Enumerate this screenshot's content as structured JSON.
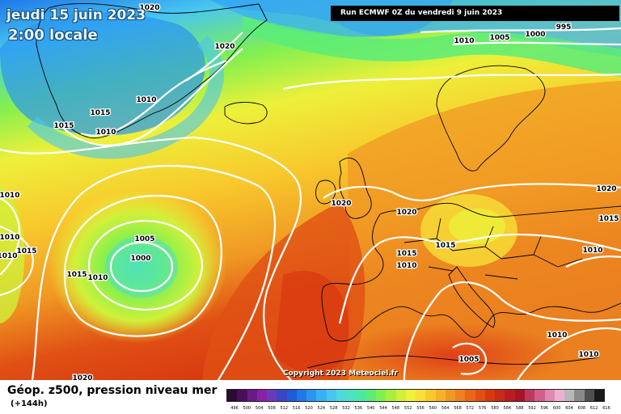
{
  "header": {
    "date": "jeudi 15 juin 2023",
    "local_time": "2:00 locale",
    "run": "Run ECMWF 0Z du vendredi 9 juin 2023"
  },
  "map": {
    "copyright": "Copyright 2023 Meteociel.fr",
    "isobar_labels": [
      {
        "id": "top-1020",
        "text": "1020"
      },
      {
        "id": "top-995",
        "text": "995"
      },
      {
        "id": "top-1000",
        "text": "1000"
      },
      {
        "id": "top-1005",
        "text": "1005"
      },
      {
        "id": "top-1010",
        "text": "1010"
      },
      {
        "id": "green-1020",
        "text": "1020"
      },
      {
        "id": "green-1010",
        "text": "1010"
      },
      {
        "id": "green-1015",
        "text": "1015"
      },
      {
        "id": "green-1010b",
        "text": "1010"
      },
      {
        "id": "green-1015b",
        "text": "1015"
      },
      {
        "id": "left-1010",
        "text": "1010"
      },
      {
        "id": "left-1010b",
        "text": "1010"
      },
      {
        "id": "left-1015",
        "text": "1015"
      },
      {
        "id": "left-1010c",
        "text": "1010"
      },
      {
        "id": "low-1005",
        "text": "1005"
      },
      {
        "id": "low-1000",
        "text": "1000"
      },
      {
        "id": "low-1015",
        "text": "1015"
      },
      {
        "id": "low-1010",
        "text": "1010"
      },
      {
        "id": "uk-1020",
        "text": "1020"
      },
      {
        "id": "fr-1020",
        "text": "1020"
      },
      {
        "id": "fr-1015",
        "text": "1015"
      },
      {
        "id": "fr-1015b",
        "text": "1015"
      },
      {
        "id": "fr-1010",
        "text": "1010"
      },
      {
        "id": "it-1005",
        "text": "1005"
      },
      {
        "id": "east-1020",
        "text": "1020"
      },
      {
        "id": "east-1015",
        "text": "1015"
      },
      {
        "id": "east-1010",
        "text": "1010"
      },
      {
        "id": "se-1010",
        "text": "1010"
      },
      {
        "id": "se-1010b",
        "text": "1010"
      },
      {
        "id": "bottom-1020",
        "text": "1020"
      }
    ]
  },
  "footer": {
    "parameter": "Géop. z500, pression niveau mer",
    "lead_time": "(+144h)"
  },
  "legend": {
    "colors": [
      "#2a0a33",
      "#4a0f5a",
      "#6a1a86",
      "#8a22a8",
      "#6a3bb8",
      "#3a45c8",
      "#1f5ad8",
      "#1f78e8",
      "#2a95f0",
      "#3ab0f4",
      "#48c6f0",
      "#4fd8e0",
      "#4fe0c4",
      "#4ce8a0",
      "#5cec78",
      "#80f050",
      "#a8f03c",
      "#d0f03a",
      "#eef03a",
      "#f8e038",
      "#f8c82c",
      "#f8b028",
      "#f09824",
      "#f08020",
      "#e86818",
      "#e05014",
      "#d83810",
      "#c82a18",
      "#b81e20",
      "#a81424",
      "#c03860",
      "#d0608a",
      "#e088b0",
      "#eeb0d0",
      "#b8b8b8",
      "#8a8a8a",
      "#505050",
      "#1a1a1a"
    ],
    "labels": [
      "496",
      "500",
      "504",
      "508",
      "512",
      "516",
      "520",
      "524",
      "528",
      "532",
      "536",
      "540",
      "544",
      "548",
      "552",
      "556",
      "560",
      "564",
      "568",
      "572",
      "576",
      "580",
      "584",
      "588",
      "592",
      "596",
      "600",
      "604",
      "608",
      "612",
      "616"
    ]
  }
}
